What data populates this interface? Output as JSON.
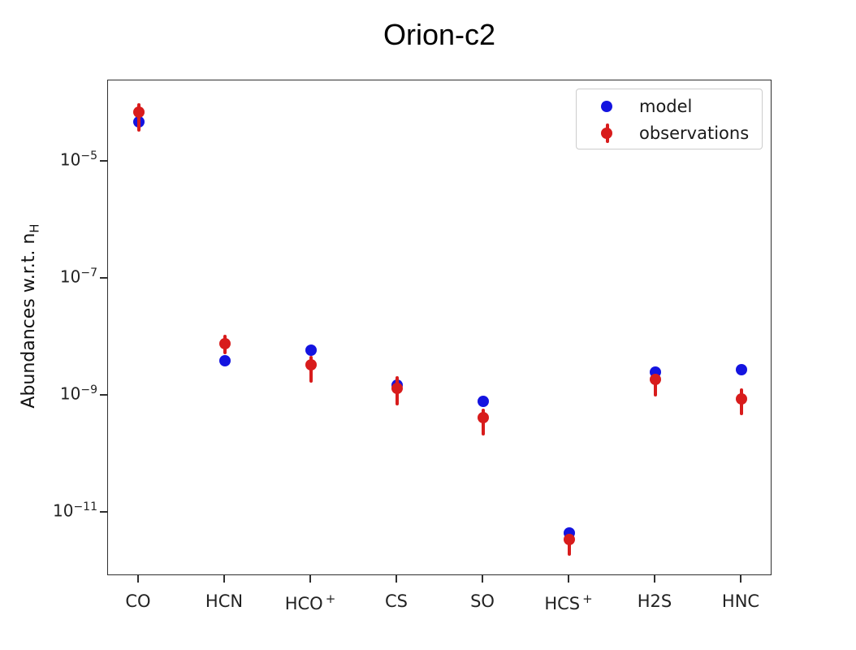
{
  "title": "Orion-c2",
  "legend": {
    "items": [
      {
        "label": "model",
        "color": "#1414e0"
      },
      {
        "label": "observations",
        "color": "#d81c1c"
      }
    ]
  },
  "axes": {
    "y_label_main": "Abundances w.r.t. n",
    "y_label_sub": "H",
    "y_tick_base": "10",
    "y_ticks": [
      {
        "exp": "−5",
        "value": 1e-05
      },
      {
        "exp": "−7",
        "value": 1e-07
      },
      {
        "exp": "−9",
        "value": 1e-09
      },
      {
        "exp": "−11",
        "value": 1e-11
      }
    ],
    "x_ticks": [
      {
        "text": "CO",
        "sup": ""
      },
      {
        "text": "HCN",
        "sup": ""
      },
      {
        "text": "HCO",
        "sup": "+"
      },
      {
        "text": "CS",
        "sup": ""
      },
      {
        "text": "SO",
        "sup": ""
      },
      {
        "text": "HCS",
        "sup": "+"
      },
      {
        "text": "H2S",
        "sup": ""
      },
      {
        "text": "HNC",
        "sup": ""
      }
    ]
  },
  "chart_data": {
    "type": "scatter",
    "title": "Orion-c2",
    "xlabel": "",
    "ylabel": "Abundances w.r.t. n_H",
    "yscale": "log",
    "ylim": [
      8.3e-13,
      0.000245
    ],
    "grid": false,
    "legend_position": "upper right",
    "x_categories": [
      "CO",
      "HCN",
      "HCO+",
      "CS",
      "SO",
      "HCS+",
      "H2S",
      "HNC"
    ],
    "series": [
      {
        "name": "model",
        "color": "#1414e0",
        "marker": "circle",
        "values": [
          4.8e-05,
          4e-09,
          6e-09,
          1.5e-09,
          8e-10,
          4.5e-12,
          2.5e-09,
          2.8e-09
        ]
      },
      {
        "name": "observations",
        "color": "#d81c1c",
        "marker": "circle",
        "values": [
          7e-05,
          7.8e-09,
          3.4e-09,
          1.35e-09,
          4.2e-10,
          3.5e-12,
          1.9e-09,
          8.9e-10
        ],
        "err_low": [
          3.3e-05,
          5.1e-09,
          1.7e-09,
          6.8e-10,
          2.1e-10,
          1.85e-12,
          9.6e-10,
          4.6e-10
        ],
        "err_high": [
          0.0001,
          1.1e-08,
          4.8e-09,
          2.15e-09,
          6e-10,
          4.4e-12,
          2.35e-09,
          1.33e-09
        ]
      }
    ]
  }
}
